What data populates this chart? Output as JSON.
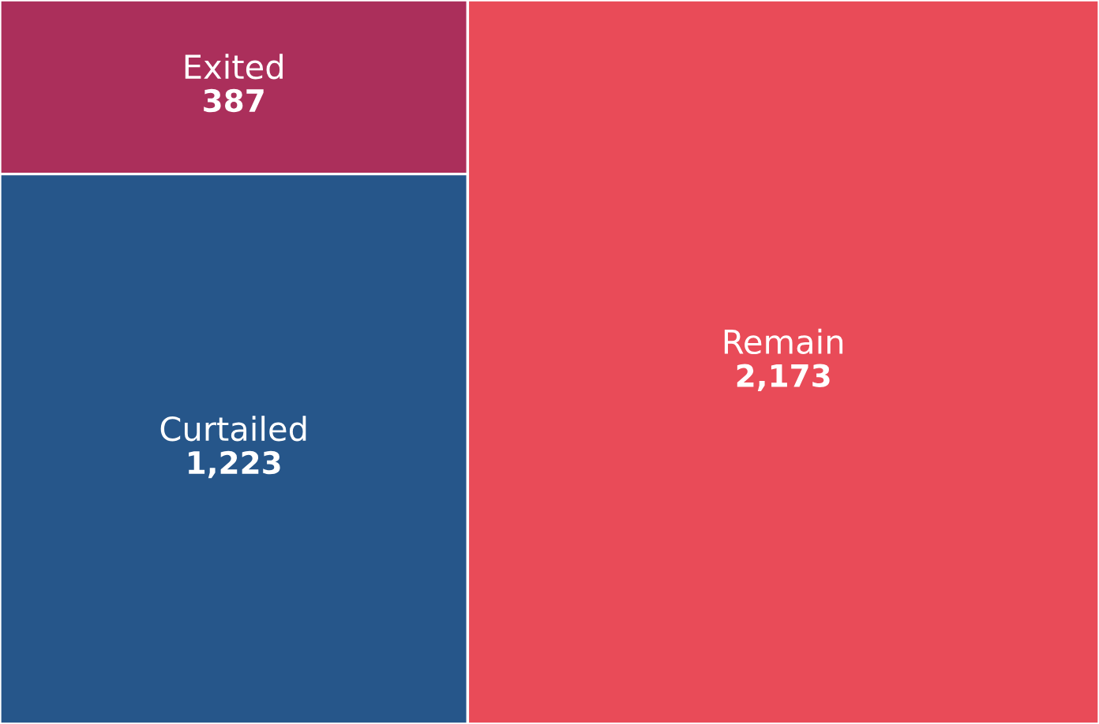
{
  "chart_data": {
    "type": "other",
    "categories": [
      "Exited",
      "Curtailed",
      "Remain"
    ],
    "values": [
      387,
      1223,
      2173
    ],
    "value_labels": [
      "387",
      "1,223",
      "2,173"
    ],
    "colors": [
      "#ab2f5b",
      "#26568a",
      "#e94b58"
    ]
  }
}
